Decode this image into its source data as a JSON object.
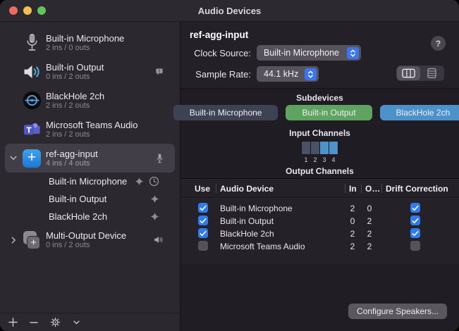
{
  "window": {
    "title": "Audio Devices"
  },
  "colors": {
    "accent_blue": "#3b76f0",
    "checkbox_blue": "#2d7bee",
    "pill_slate": "#3e4354",
    "pill_green": "#5ea360",
    "pill_blue": "#4b92ca",
    "channel_inactive": "#4a5165",
    "channel_active": "#4e92ca"
  },
  "sidebar": {
    "items": [
      {
        "icon": "microphone-icon",
        "title": "Built-in Microphone",
        "subtitle": "2 ins / 0 outs",
        "trailing": []
      },
      {
        "icon": "speaker-icon",
        "title": "Built-in Output",
        "subtitle": "0 ins / 2 outs",
        "trailing": [
          "alert-bubble-icon"
        ]
      },
      {
        "icon": "blackhole-icon",
        "title": "BlackHole 2ch",
        "subtitle": "2 ins / 2 outs",
        "trailing": []
      },
      {
        "icon": "teams-icon",
        "title": "Microsoft Teams Audio",
        "subtitle": "2 ins / 2 outs",
        "trailing": []
      },
      {
        "icon": "aggregate-device-icon",
        "title": "ref-agg-input",
        "subtitle": "4 ins / 4 outs",
        "selected": true,
        "chevron": "down",
        "trailing": [
          "microphone-small-icon"
        ]
      },
      {
        "child": true,
        "title": "Built-in Microphone",
        "trailing": [
          "spark-icon",
          "clock-icon"
        ]
      },
      {
        "child": true,
        "title": "Built-in Output",
        "trailing": [
          "spark-icon"
        ]
      },
      {
        "child": true,
        "title": "BlackHole 2ch",
        "trailing": [
          "spark-icon"
        ]
      },
      {
        "icon": "multi-output-icon",
        "title": "Multi-Output Device",
        "subtitle": "0 ins / 2 outs",
        "chevron": "right",
        "trailing": [
          "speaker-small-icon"
        ]
      }
    ],
    "toolbar": [
      "add",
      "remove",
      "actions",
      "collapse"
    ]
  },
  "main": {
    "title": "ref-agg-input",
    "help_label": "?",
    "clock_source": {
      "label": "Clock Source:",
      "value": "Built-in Microphone"
    },
    "sample_rate": {
      "label": "Sample Rate:",
      "value": "44.1 kHz"
    },
    "view_segments": [
      "columns-view-icon",
      "rows-view-icon"
    ],
    "subdevices": {
      "heading": "Subdevices",
      "items": [
        {
          "label": "Built-in Microphone",
          "color": "#3e4354"
        },
        {
          "label": "Built-in Output",
          "color": "#5ea360"
        },
        {
          "label": "BlackHole 2ch",
          "color": "#4b92ca"
        }
      ]
    },
    "input_channels": {
      "heading": "Input Channels",
      "channels": [
        {
          "label": "1",
          "highlighted": false
        },
        {
          "label": "2",
          "highlighted": false
        },
        {
          "label": "3",
          "highlighted": true
        },
        {
          "label": "4",
          "highlighted": true
        }
      ]
    },
    "output_channels_heading": "Output Channels",
    "table": {
      "headers": [
        "Use",
        "Audio Device",
        "In",
        "O…",
        "Drift Correction"
      ],
      "rows": [
        {
          "use": true,
          "device": "Built-in Microphone",
          "in": "2",
          "out": "0",
          "drift": true
        },
        {
          "use": true,
          "device": "Built-in Output",
          "in": "0",
          "out": "2",
          "drift": true
        },
        {
          "use": true,
          "device": "BlackHole 2ch",
          "in": "2",
          "out": "2",
          "drift": true
        },
        {
          "use": false,
          "device": "Microsoft Teams Audio",
          "in": "2",
          "out": "2",
          "drift": false
        }
      ]
    },
    "configure_speakers_label": "Configure Speakers..."
  }
}
